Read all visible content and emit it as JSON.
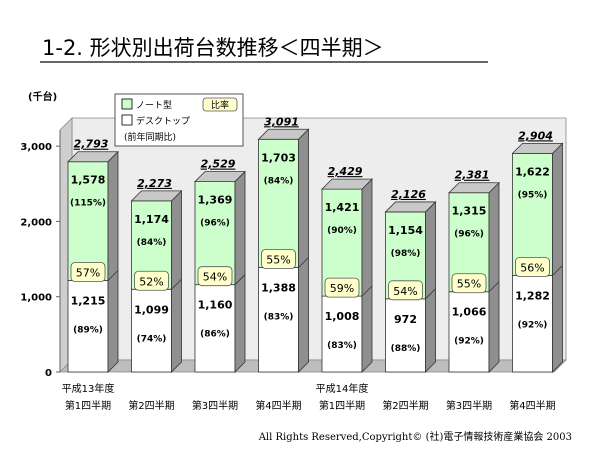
{
  "chart_data": {
    "type": "bar",
    "stacked": true,
    "three_d": true,
    "title": "1-2. 形状別出荷台数推移＜四半期＞",
    "unit": "(千台)",
    "ylim": [
      0,
      3000
    ],
    "yticks": [
      {
        "value": 0,
        "label": "0"
      },
      {
        "value": 1000,
        "label": "1,000"
      },
      {
        "value": 2000,
        "label": "2,000"
      },
      {
        "value": 3000,
        "label": "3,000"
      }
    ],
    "grid": false,
    "legend_position": "top-left",
    "legend": {
      "notebook": "ノート型",
      "desktop": "デスクトップ",
      "ratio": "比率",
      "yoy": "(前年同期比)"
    },
    "colors": {
      "notebook": "#ccffcc",
      "desktop": "#ffffff",
      "side": "#8f8f8f",
      "top": "#c8c8c8",
      "ratio_box": "#ffffcc",
      "floor": "#d0d0d0",
      "wall": "#e8e8e8"
    },
    "categories": [
      {
        "year": "平成13年度",
        "label": "第1四半期"
      },
      {
        "year": "",
        "label": "第2四半期"
      },
      {
        "year": "",
        "label": "第3四半期"
      },
      {
        "year": "",
        "label": "第4四半期"
      },
      {
        "year": "平成14年度",
        "label": "第1四半期"
      },
      {
        "year": "",
        "label": "第2四半期"
      },
      {
        "year": "",
        "label": "第3四半期"
      },
      {
        "year": "",
        "label": "第4四半期"
      }
    ],
    "series": [
      {
        "name": "デスクトップ",
        "values": [
          1215,
          1099,
          1160,
          1388,
          1008,
          972,
          1066,
          1282
        ],
        "labels": [
          "1,215",
          "1,099",
          "1,160",
          "1,388",
          "1,008",
          "972",
          "1,066",
          "1,282"
        ],
        "yoy": [
          "(89%)",
          "(74%)",
          "(86%)",
          "(83%)",
          "(83%)",
          "(88%)",
          "(92%)",
          "(92%)"
        ]
      },
      {
        "name": "ノート型",
        "values": [
          1578,
          1174,
          1369,
          1703,
          1421,
          1154,
          1315,
          1622
        ],
        "labels": [
          "1,578",
          "1,174",
          "1,369",
          "1,703",
          "1,421",
          "1,154",
          "1,315",
          "1,622"
        ],
        "yoy": [
          "(115%)",
          "(84%)",
          "(96%)",
          "(84%)",
          "(90%)",
          "(98%)",
          "(96%)",
          "(95%)"
        ]
      }
    ],
    "totals": [
      "2,793",
      "2,273",
      "2,529",
      "3,091",
      "2,429",
      "2,126",
      "2,381",
      "2,904"
    ],
    "notebook_ratio": [
      "57%",
      "52%",
      "54%",
      "55%",
      "59%",
      "54%",
      "55%",
      "56%"
    ]
  },
  "footer": {
    "copyright": "All Rights Reserved,Copyright© (社)電子情報技術産業協会 2003"
  }
}
